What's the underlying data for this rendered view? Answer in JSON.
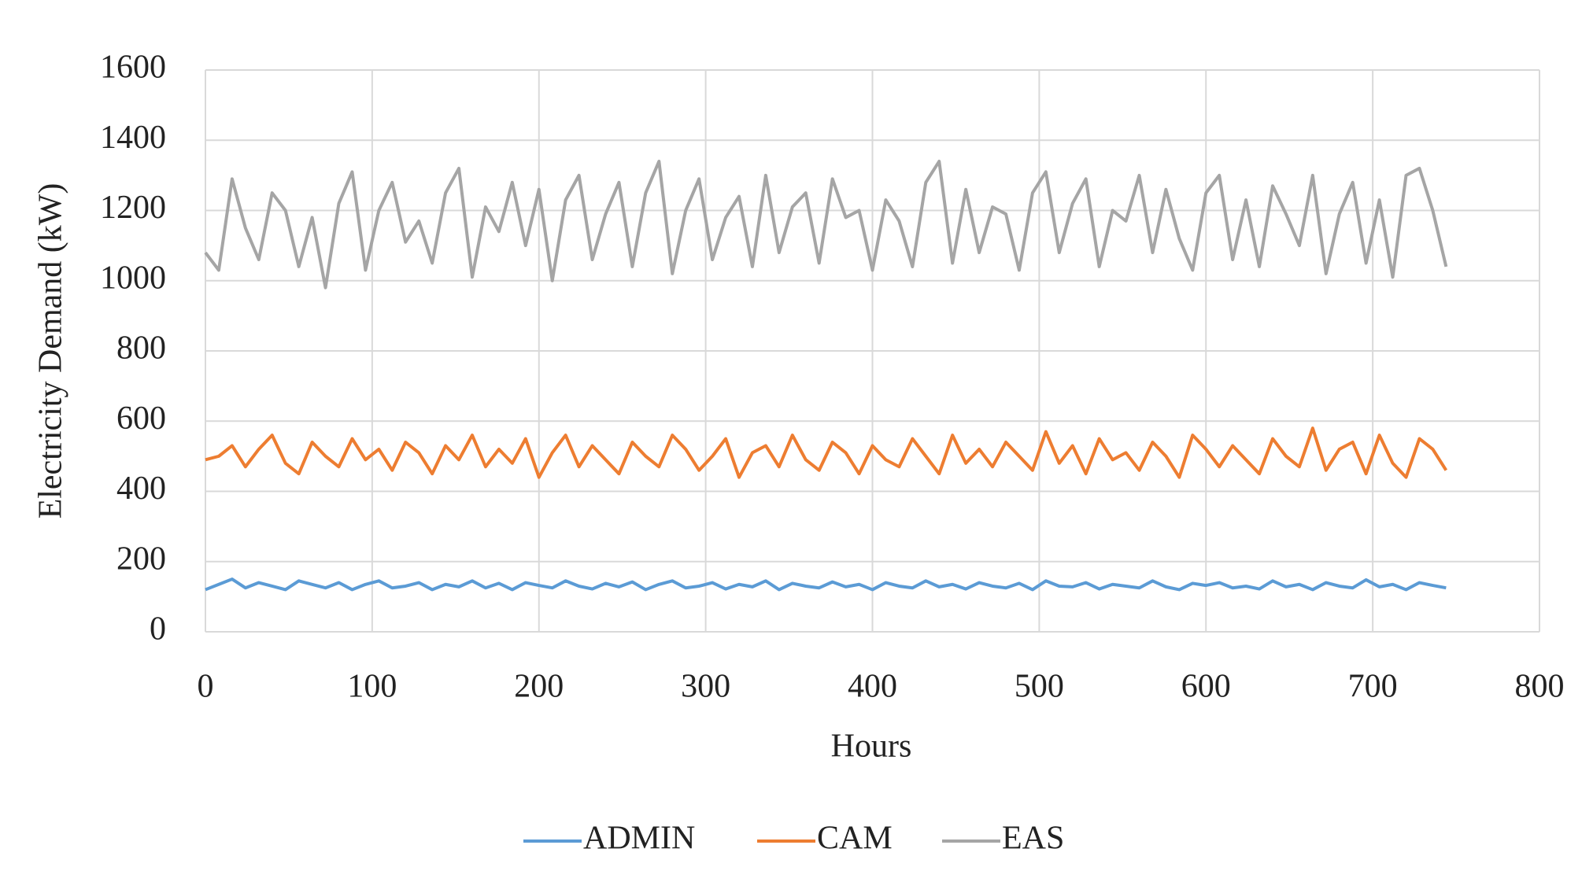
{
  "chart_data": {
    "type": "line",
    "x_label": "Hours",
    "y_label": "Electricity Demand (kW)",
    "xlim": [
      0,
      800
    ],
    "xticks": [
      0,
      100,
      200,
      300,
      400,
      500,
      600,
      700,
      800
    ],
    "ylim": [
      0,
      1600
    ],
    "yticks": [
      0,
      200,
      400,
      600,
      800,
      1000,
      1200,
      1400,
      1600
    ],
    "grid": true,
    "legend": "bottom",
    "x": [
      0,
      8,
      16,
      24,
      32,
      40,
      48,
      56,
      64,
      72,
      80,
      88,
      96,
      104,
      112,
      120,
      128,
      136,
      144,
      152,
      160,
      168,
      176,
      184,
      192,
      200,
      208,
      216,
      224,
      232,
      240,
      248,
      256,
      264,
      272,
      280,
      288,
      296,
      304,
      312,
      320,
      328,
      336,
      344,
      352,
      360,
      368,
      376,
      384,
      392,
      400,
      408,
      416,
      424,
      432,
      440,
      448,
      456,
      464,
      472,
      480,
      488,
      496,
      504,
      512,
      520,
      528,
      536,
      544,
      552,
      560,
      568,
      576,
      584,
      592,
      600,
      608,
      616,
      624,
      632,
      640,
      648,
      656,
      664,
      672,
      680,
      688,
      696,
      704,
      712,
      720,
      728,
      736,
      744
    ],
    "series": [
      {
        "name": "ADMIN",
        "color": "#5b9bd5",
        "values": [
          120,
          135,
          150,
          125,
          140,
          130,
          120,
          145,
          135,
          125,
          140,
          120,
          135,
          145,
          125,
          130,
          140,
          120,
          135,
          128,
          145,
          125,
          138,
          120,
          140,
          132,
          125,
          145,
          130,
          122,
          138,
          128,
          142,
          120,
          135,
          145,
          125,
          130,
          140,
          122,
          135,
          128,
          145,
          120,
          138,
          130,
          125,
          142,
          128,
          135,
          120,
          140,
          130,
          125,
          145,
          128,
          135,
          122,
          140,
          130,
          125,
          138,
          120,
          145,
          130,
          128,
          140,
          122,
          135,
          130,
          125,
          145,
          128,
          120,
          138,
          132,
          140,
          125,
          130,
          122,
          145,
          128,
          135,
          120,
          140,
          130,
          125,
          148,
          128,
          135,
          120,
          140,
          132,
          125
        ]
      },
      {
        "name": "CAM",
        "color": "#ed7d31",
        "values": [
          490,
          500,
          530,
          470,
          520,
          560,
          480,
          450,
          540,
          500,
          470,
          550,
          490,
          520,
          460,
          540,
          510,
          450,
          530,
          490,
          560,
          470,
          520,
          480,
          550,
          440,
          510,
          560,
          470,
          530,
          490,
          450,
          540,
          500,
          470,
          560,
          520,
          460,
          500,
          550,
          440,
          510,
          530,
          470,
          560,
          490,
          460,
          540,
          510,
          450,
          530,
          490,
          470,
          550,
          500,
          450,
          560,
          480,
          520,
          470,
          540,
          500,
          460,
          570,
          480,
          530,
          450,
          550,
          490,
          510,
          460,
          540,
          500,
          440,
          560,
          520,
          470,
          530,
          490,
          450,
          550,
          500,
          470,
          580,
          460,
          520,
          540,
          450,
          560,
          480,
          440,
          550,
          520,
          460
        ]
      },
      {
        "name": "EAS",
        "color": "#a5a5a5",
        "values": [
          1080,
          1030,
          1290,
          1150,
          1060,
          1250,
          1200,
          1040,
          1180,
          980,
          1220,
          1310,
          1030,
          1200,
          1280,
          1110,
          1170,
          1050,
          1250,
          1320,
          1010,
          1210,
          1140,
          1280,
          1100,
          1260,
          1000,
          1230,
          1300,
          1060,
          1190,
          1280,
          1040,
          1250,
          1340,
          1020,
          1200,
          1290,
          1060,
          1180,
          1240,
          1040,
          1300,
          1080,
          1210,
          1250,
          1050,
          1290,
          1180,
          1200,
          1030,
          1230,
          1170,
          1040,
          1280,
          1340,
          1050,
          1260,
          1080,
          1210,
          1190,
          1030,
          1250,
          1310,
          1080,
          1220,
          1290,
          1040,
          1200,
          1170,
          1300,
          1080,
          1260,
          1120,
          1030,
          1250,
          1300,
          1060,
          1230,
          1040,
          1270,
          1190,
          1100,
          1300,
          1020,
          1190,
          1280,
          1050,
          1230,
          1010,
          1300,
          1320,
          1200,
          1040
        ]
      }
    ]
  }
}
